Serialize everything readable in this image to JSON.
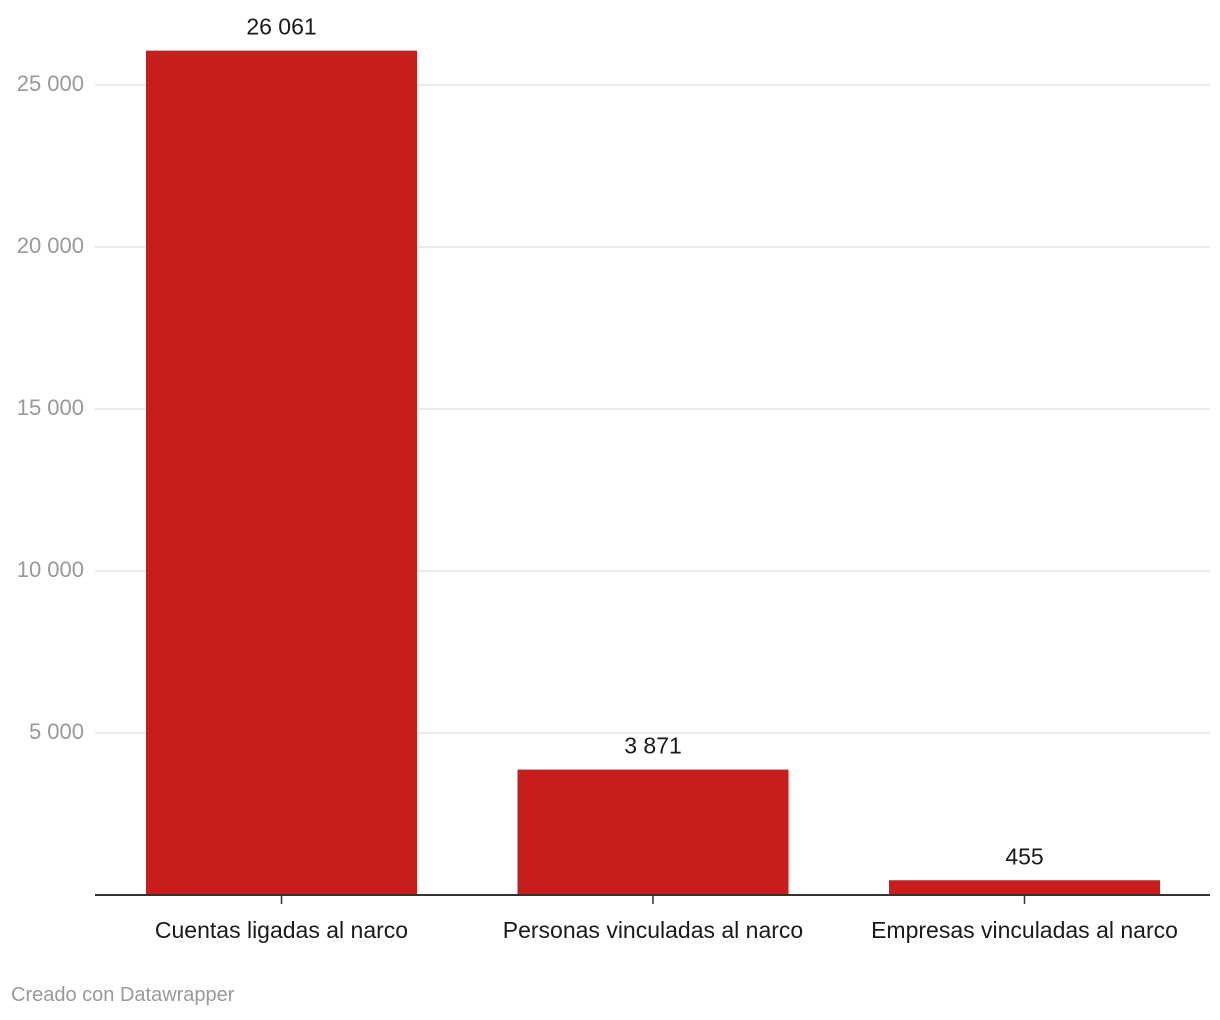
{
  "chart_data": {
    "type": "bar",
    "categories": [
      "Cuentas ligadas al narco",
      "Personas vinculadas al narco",
      "Empresas vinculadas al narco"
    ],
    "values": [
      26061,
      3871,
      455
    ],
    "value_labels": [
      "26 061",
      "3 871",
      "455"
    ],
    "yticks": [
      5000,
      10000,
      15000,
      20000,
      25000
    ],
    "ytick_labels": [
      "5 000",
      "10 000",
      "15 000",
      "20 000",
      "25 000"
    ],
    "ylim": [
      0,
      27000
    ],
    "grid": true,
    "bar_color": "#c61d1d"
  },
  "credit": "Creado con Datawrapper"
}
